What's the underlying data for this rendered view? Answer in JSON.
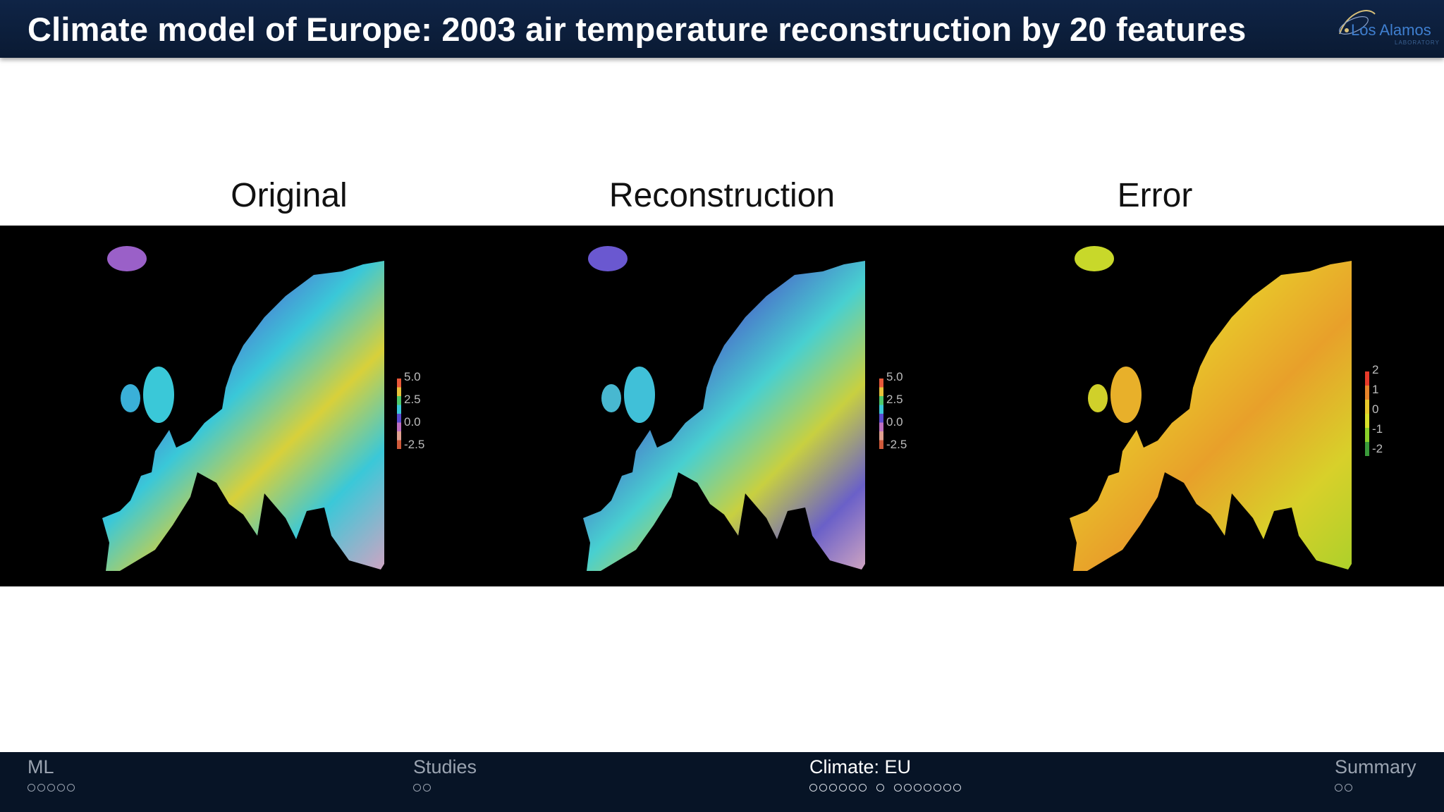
{
  "header": {
    "title": "Climate model of Europe: 2003 air temperature reconstruction by 20 features",
    "logo_text": "Los Alamos",
    "logo_subtext": "LABORATORY"
  },
  "panels": [
    {
      "title": "Original",
      "colorbar": {
        "ticks": [
          "5.0",
          "2.5",
          "0.0",
          "-2.5"
        ],
        "colors": [
          "#e8583a",
          "#e8c23a",
          "#4ec86a",
          "#3ac8d8",
          "#5a4bd0",
          "#c070c0",
          "#e0a090",
          "#d05a3a"
        ]
      }
    },
    {
      "title": "Reconstruction",
      "colorbar": {
        "ticks": [
          "5.0",
          "2.5",
          "0.0",
          "-2.5"
        ],
        "colors": [
          "#e8583a",
          "#e8c23a",
          "#4ec86a",
          "#3ac8d8",
          "#5a4bd0",
          "#c070c0",
          "#e0a090",
          "#d05a3a"
        ]
      }
    },
    {
      "title": "Error",
      "colorbar": {
        "ticks": [
          "2",
          "1",
          "0",
          "-1",
          "-2"
        ],
        "colors": [
          "#e83a2a",
          "#e8842a",
          "#e8c82a",
          "#d8e02a",
          "#8ad02a",
          "#3a9a3a"
        ]
      }
    }
  ],
  "footer": {
    "sections": [
      {
        "label": "ML",
        "active": false,
        "dot_groups": [
          5
        ]
      },
      {
        "label": "Studies",
        "active": false,
        "dot_groups": [
          2
        ]
      },
      {
        "label": "Climate: EU",
        "active": true,
        "dot_groups": [
          6,
          1,
          7
        ]
      },
      {
        "label": "Summary",
        "active": false,
        "dot_groups": [
          2
        ]
      }
    ]
  }
}
